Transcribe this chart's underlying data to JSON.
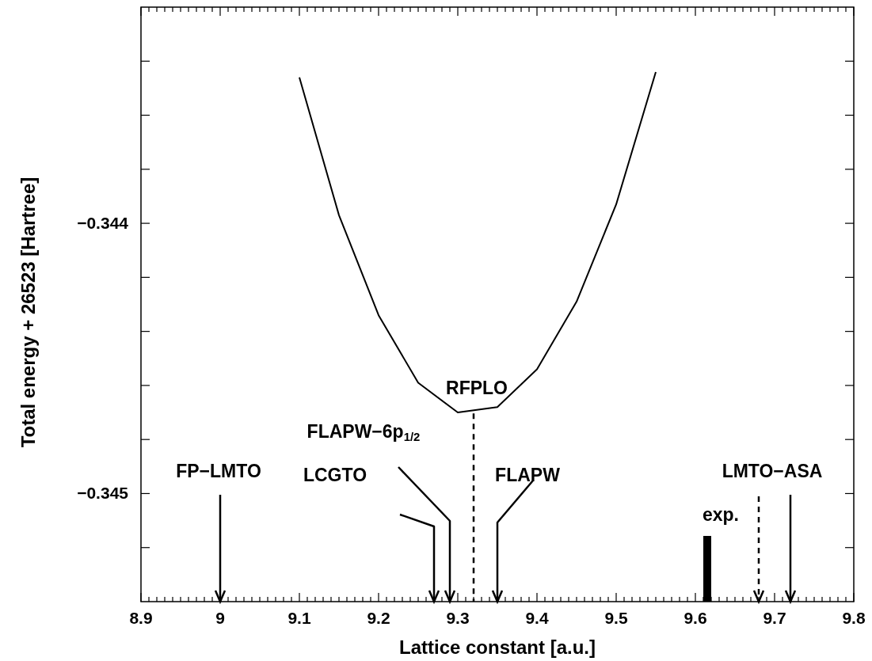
{
  "chart_data": {
    "type": "line",
    "xlabel": "Lattice constant [a.u.]",
    "ylabel": "Total energy + 26523 [Hartree]",
    "series": [
      {
        "color": "#000000",
        "x": [
          9.1,
          9.15,
          9.2,
          9.25,
          9.3,
          9.35,
          9.4,
          9.45,
          9.5,
          9.55
        ],
        "values": [
          -0.34346,
          -0.34397,
          -0.34434,
          -0.34459,
          -0.3447,
          -0.34468,
          -0.34454,
          -0.34429,
          -0.34393,
          -0.34344
        ]
      }
    ],
    "xlim": [
      8.9,
      9.8
    ],
    "ylim": [
      -0.3454,
      -0.3432
    ],
    "xticks": [
      8.9,
      {
        "value": 8.91,
        "label": null
      },
      {
        "value": 8.92,
        "label": null
      },
      {
        "value": 8.93,
        "label": null
      },
      {
        "value": 8.94,
        "label": null
      },
      {
        "value": 8.95,
        "label": null
      },
      {
        "value": 8.96,
        "label": null
      },
      {
        "value": 8.97,
        "label": null
      },
      {
        "value": 8.98,
        "label": null
      },
      {
        "value": 8.99,
        "label": null
      },
      9,
      {
        "value": 9.01,
        "label": null
      },
      {
        "value": 9.02,
        "label": null
      },
      {
        "value": 9.03,
        "label": null
      },
      {
        "value": 9.04,
        "label": null
      },
      {
        "value": 9.05,
        "label": null
      },
      {
        "value": 9.06,
        "label": null
      },
      {
        "value": 9.07,
        "label": null
      },
      {
        "value": 9.08,
        "label": null
      },
      {
        "value": 9.09,
        "label": null
      },
      9.1,
      {
        "value": 9.11,
        "label": null
      },
      {
        "value": 9.12,
        "label": null
      },
      {
        "value": 9.13,
        "label": null
      },
      {
        "value": 9.14,
        "label": null
      },
      {
        "value": 9.15,
        "label": null
      },
      {
        "value": 9.16,
        "label": null
      },
      {
        "value": 9.17,
        "label": null
      },
      {
        "value": 9.18,
        "label": null
      },
      {
        "value": 9.19,
        "label": null
      },
      9.2,
      {
        "value": 9.21,
        "label": null
      },
      {
        "value": 9.22,
        "label": null
      },
      {
        "value": 9.23,
        "label": null
      },
      {
        "value": 9.24,
        "label": null
      },
      {
        "value": 9.25,
        "label": null
      },
      {
        "value": 9.26,
        "label": null
      },
      {
        "value": 9.27,
        "label": null
      },
      {
        "value": 9.28,
        "label": null
      },
      {
        "value": 9.29,
        "label": null
      },
      9.3,
      {
        "value": 9.31,
        "label": null
      },
      {
        "value": 9.32,
        "label": null
      },
      {
        "value": 9.33,
        "label": null
      },
      {
        "value": 9.34,
        "label": null
      },
      {
        "value": 9.35,
        "label": null
      },
      {
        "value": 9.36,
        "label": null
      },
      {
        "value": 9.37,
        "label": null
      },
      {
        "value": 9.38,
        "label": null
      },
      {
        "value": 9.39,
        "label": null
      },
      9.4,
      {
        "value": 9.41,
        "label": null
      },
      {
        "value": 9.42,
        "label": null
      },
      {
        "value": 9.43,
        "label": null
      },
      {
        "value": 9.44,
        "label": null
      },
      {
        "value": 9.45,
        "label": null
      },
      {
        "value": 9.46,
        "label": null
      },
      {
        "value": 9.47,
        "label": null
      },
      {
        "value": 9.48,
        "label": null
      },
      {
        "value": 9.49,
        "label": null
      },
      9.5,
      {
        "value": 9.51,
        "label": null
      },
      {
        "value": 9.52,
        "label": null
      },
      {
        "value": 9.53,
        "label": null
      },
      {
        "value": 9.54,
        "label": null
      },
      {
        "value": 9.55,
        "label": null
      },
      {
        "value": 9.56,
        "label": null
      },
      {
        "value": 9.57,
        "label": null
      },
      {
        "value": 9.58,
        "label": null
      },
      {
        "value": 9.59,
        "label": null
      },
      9.6,
      {
        "value": 9.61,
        "label": null
      },
      {
        "value": 9.62,
        "label": null
      },
      {
        "value": 9.63,
        "label": null
      },
      {
        "value": 9.64,
        "label": null
      },
      {
        "value": 9.65,
        "label": null
      },
      {
        "value": 9.66,
        "label": null
      },
      {
        "value": 9.67,
        "label": null
      },
      {
        "value": 9.68,
        "label": null
      },
      {
        "value": 9.69,
        "label": null
      },
      9.7,
      {
        "value": 9.71,
        "label": null
      },
      {
        "value": 9.72,
        "label": null
      },
      {
        "value": 9.73,
        "label": null
      },
      {
        "value": 9.74,
        "label": null
      },
      {
        "value": 9.75,
        "label": null
      },
      {
        "value": 9.76,
        "label": null
      },
      {
        "value": 9.77,
        "label": null
      },
      {
        "value": 9.78,
        "label": null
      },
      {
        "value": 9.79,
        "label": null
      },
      9.8
    ],
    "yticks": [
      {
        "value": -0.3452,
        "label": null
      },
      {
        "value": -0.345,
        "label": "−0.345"
      },
      {
        "value": -0.3448,
        "label": null
      },
      {
        "value": -0.3446,
        "label": null
      },
      {
        "value": -0.3444,
        "label": null
      },
      {
        "value": -0.3442,
        "label": null
      },
      {
        "value": -0.344,
        "label": "−0.344"
      },
      {
        "value": -0.3438,
        "label": null
      },
      {
        "value": -0.3436,
        "label": null
      },
      {
        "value": -0.3434,
        "label": null
      }
    ],
    "ref_lines": [
      {
        "axis": "x",
        "value": 9.0,
        "label": "FP−LMTO",
        "line_style": "solid"
      },
      {
        "axis": "x",
        "value": 9.27,
        "label": "LCGTO",
        "line_style": "solid"
      },
      {
        "axis": "x",
        "value": 9.29,
        "label": "FLAPW−6p$_{1/2}$",
        "line_style": "solid"
      },
      {
        "axis": "x",
        "value": 9.32,
        "label": "RFPLO",
        "line_style": "dashed"
      },
      {
        "axis": "x",
        "value": 9.35,
        "label": "FLAPW",
        "line_style": "solid"
      },
      {
        "axis": "x",
        "value": 9.615,
        "label": "exp.",
        "line_style": "solid"
      },
      {
        "axis": "x",
        "value": 9.68,
        "line_style": "dashed"
      },
      {
        "axis": "x",
        "value": 9.72,
        "label": "LMTO−ASA",
        "line_style": "solid"
      }
    ],
    "grid": false
  }
}
